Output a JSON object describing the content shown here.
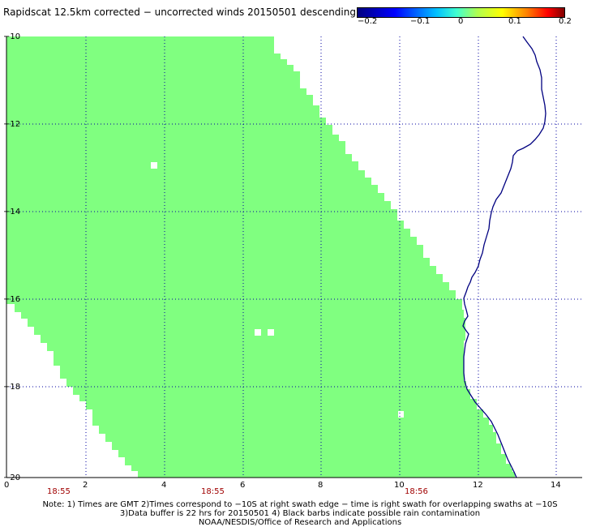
{
  "title": "Rapidscat 12.5km corrected − uncorrected winds 20150501 descending",
  "colorbar": {
    "ticks": [
      "−0.2",
      "−0.1",
      "0",
      "0.1",
      "0.2"
    ]
  },
  "axes": {
    "y_labels": [
      "−10",
      "−12",
      "−14",
      "−16",
      "−18",
      "−20"
    ],
    "x_labels": [
      "0",
      "2",
      "4",
      "6",
      "8",
      "10",
      "12",
      "14"
    ]
  },
  "times": [
    "18:55",
    "18:55",
    "18:56"
  ],
  "notes": {
    "line1": "Note: 1) Times are GMT 2)Times correspond to −10S at right swath edge − time is right swath for overlapping swaths at −10S",
    "line2": "3)Data buffer is 22 hrs for 20150501 4) Black barbs indicate possible rain contamination",
    "line3": "NOAA/NESDIS/Office of Research and Applications"
  },
  "colors": {
    "swath": "#80ff80",
    "coast": "#000080",
    "grid": "#0000a0"
  }
}
